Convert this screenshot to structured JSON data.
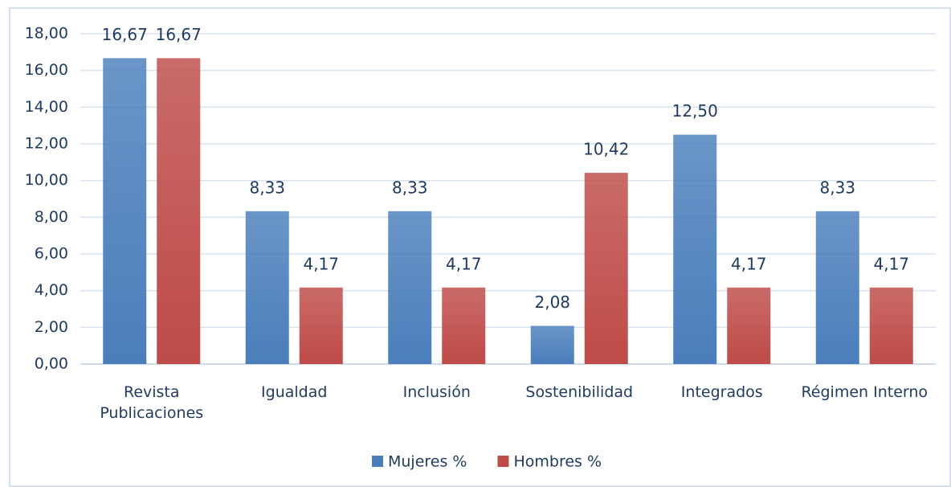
{
  "chart_data": {
    "type": "bar",
    "categories": [
      "Revista Publicaciones",
      "Igualdad",
      "Inclusión",
      "Sostenibilidad",
      "Integrados",
      "Régimen Interno"
    ],
    "series": [
      {
        "name": "Mujeres %",
        "color": "#4a7ebb",
        "values": [
          16.67,
          8.33,
          8.33,
          2.08,
          12.5,
          8.33
        ],
        "value_labels": [
          "16,67",
          "8,33",
          "8,33",
          "2,08",
          "12,50",
          "8,33"
        ]
      },
      {
        "name": "Hombres %",
        "color": "#be4b48",
        "values": [
          16.67,
          4.17,
          4.17,
          10.42,
          4.17,
          4.17
        ],
        "value_labels": [
          "16,67",
          "4,17",
          "4,17",
          "10,42",
          "4,17",
          "4,17"
        ]
      }
    ],
    "ylim": [
      0,
      18
    ],
    "yticks": [
      {
        "value": 0,
        "label": "0,00"
      },
      {
        "value": 2,
        "label": "2,00"
      },
      {
        "value": 4,
        "label": "4,00"
      },
      {
        "value": 6,
        "label": "6,00"
      },
      {
        "value": 8,
        "label": "8,00"
      },
      {
        "value": 10,
        "label": "10,00"
      },
      {
        "value": 12,
        "label": "12,00"
      },
      {
        "value": 14,
        "label": "14,00"
      },
      {
        "value": 16,
        "label": "16,00"
      },
      {
        "value": 18,
        "label": "18,00"
      }
    ],
    "grid": true,
    "legend": "bottom"
  }
}
